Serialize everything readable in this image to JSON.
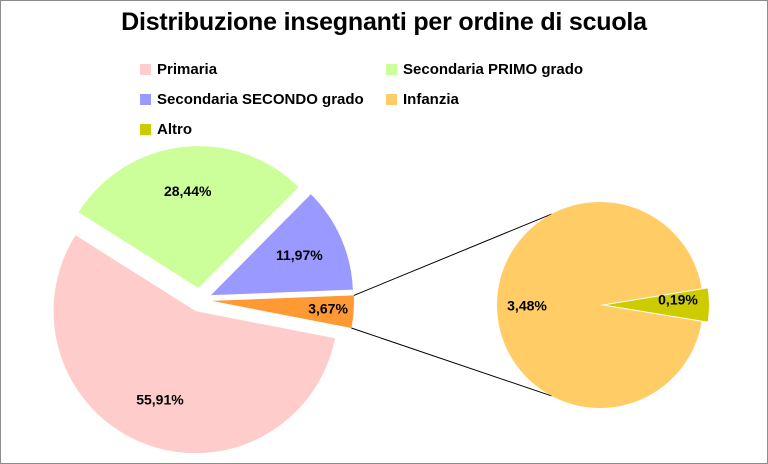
{
  "chart_data": {
    "type": "pie",
    "title": "Distribuzione insegnanti per ordine di scuola",
    "legend_placement": "top",
    "main_pie": [
      {
        "key": "primaria",
        "value": 55.91,
        "label": "55,91%",
        "color": "#ffcccc"
      },
      {
        "key": "secondaria1",
        "value": 28.44,
        "label": "28,44%",
        "color": "#ccff99"
      },
      {
        "key": "secondaria2",
        "value": 11.97,
        "label": "11,97%",
        "color": "#9999ff"
      },
      {
        "key": "other",
        "value": 3.67,
        "label": "3,67%",
        "color": "#ff9933"
      }
    ],
    "secondary_pie": [
      {
        "key": "infanzia",
        "value": 3.48,
        "label": "3,48%",
        "color": "#ffcc66"
      },
      {
        "key": "altro",
        "value": 0.19,
        "label": "0,19%",
        "color": "#cccc00"
      }
    ],
    "legend": [
      {
        "key": "primaria",
        "label": "Primaria",
        "color": "#ffcccc"
      },
      {
        "key": "secondaria1",
        "label": "Secondaria PRIMO grado",
        "color": "#ccff99"
      },
      {
        "key": "secondaria2",
        "label": "Secondaria SECONDO grado",
        "color": "#9999ff"
      },
      {
        "key": "infanzia",
        "label": "Infanzia",
        "color": "#ffcc66"
      },
      {
        "key": "altro",
        "label": "Altro",
        "color": "#cccc00"
      }
    ]
  }
}
